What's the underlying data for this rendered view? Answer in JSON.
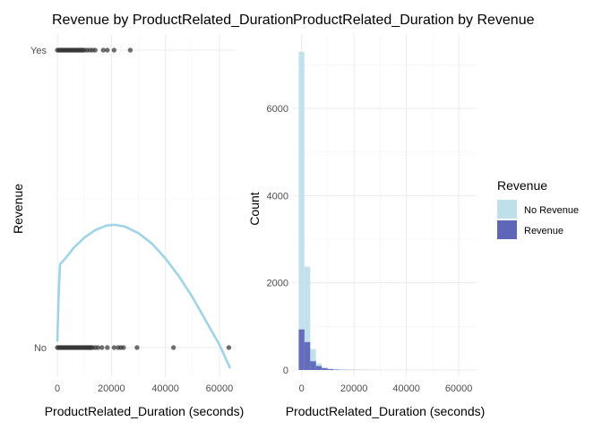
{
  "chart_data": [
    {
      "type": "scatter",
      "title": "Revenue by ProductRelated_Duration",
      "xlabel": "ProductRelated_Duration (seconds)",
      "ylabel": "Revenue",
      "xlim": [
        -2000,
        66000
      ],
      "x_ticks": [
        "0",
        "20000",
        "40000",
        "60000"
      ],
      "x_tick_values": [
        0,
        20000,
        40000,
        60000
      ],
      "y_categories": [
        "No",
        "Yes"
      ],
      "grid": true,
      "point_color": "#333333",
      "point_opacity": 0.7,
      "points_yes_x": [
        0,
        500,
        1000,
        1500,
        2000,
        2500,
        3000,
        3500,
        4000,
        4500,
        5000,
        5500,
        6000,
        6500,
        7000,
        7500,
        8000,
        8500,
        9000,
        9500,
        10000,
        11000,
        12000,
        13000,
        14000,
        17000,
        18500,
        21000,
        27000
      ],
      "points_no_x": [
        0,
        500,
        1000,
        1500,
        2000,
        2500,
        3000,
        3500,
        4000,
        4500,
        5000,
        5500,
        6000,
        6500,
        7000,
        7500,
        8000,
        8500,
        9000,
        9500,
        10000,
        10500,
        11000,
        11500,
        12000,
        12500,
        13000,
        14000,
        15000,
        16500,
        18500,
        21000,
        22500,
        23500,
        24500,
        29500,
        43000,
        63500
      ],
      "smooth_color": "#9fd3e6",
      "smooth_curve": [
        {
          "x": 0,
          "y": 0.02
        },
        {
          "x": 500,
          "y": 0.18
        },
        {
          "x": 1000,
          "y": 0.28
        },
        {
          "x": 3000,
          "y": 0.3
        },
        {
          "x": 6000,
          "y": 0.335
        },
        {
          "x": 10000,
          "y": 0.37
        },
        {
          "x": 14000,
          "y": 0.395
        },
        {
          "x": 18000,
          "y": 0.41
        },
        {
          "x": 21000,
          "y": 0.413
        },
        {
          "x": 25000,
          "y": 0.407
        },
        {
          "x": 30000,
          "y": 0.385
        },
        {
          "x": 35000,
          "y": 0.35
        },
        {
          "x": 40000,
          "y": 0.3
        },
        {
          "x": 45000,
          "y": 0.24
        },
        {
          "x": 50000,
          "y": 0.17
        },
        {
          "x": 55000,
          "y": 0.09
        },
        {
          "x": 60000,
          "y": 0.01
        },
        {
          "x": 64000,
          "y": -0.07
        }
      ]
    },
    {
      "type": "bar",
      "title": "ProductRelated_Duration by Revenue",
      "xlabel": "ProductRelated_Duration (seconds)",
      "ylabel": "Count",
      "xlim": [
        -3300,
        66800
      ],
      "ylim": [
        0,
        7600
      ],
      "x_ticks": [
        "0",
        "20000",
        "40000",
        "60000"
      ],
      "x_tick_values": [
        0,
        20000,
        40000,
        60000
      ],
      "y_ticks": [
        "0",
        "2000",
        "4000",
        "6000"
      ],
      "y_tick_values": [
        0,
        2000,
        4000,
        6000
      ],
      "grid": true,
      "bin_width": 2200,
      "bin_starts": [
        -1100,
        1100,
        3300,
        5500,
        7700,
        9900,
        12100,
        14300,
        16500,
        18700,
        20900,
        23100,
        25300,
        27500
      ],
      "series": [
        {
          "name": "No Revenue",
          "color": "#bfdfeb",
          "values": [
            7300,
            2370,
            480,
            150,
            60,
            30,
            15,
            10,
            5,
            4,
            3,
            2,
            2,
            1
          ]
        },
        {
          "name": "Revenue",
          "color": "#5f66b8",
          "values": [
            930,
            640,
            200,
            90,
            40,
            20,
            10,
            6,
            4,
            3,
            2,
            2,
            1,
            1
          ]
        }
      ],
      "legend_title": "Revenue",
      "legend_position": "right"
    }
  ]
}
